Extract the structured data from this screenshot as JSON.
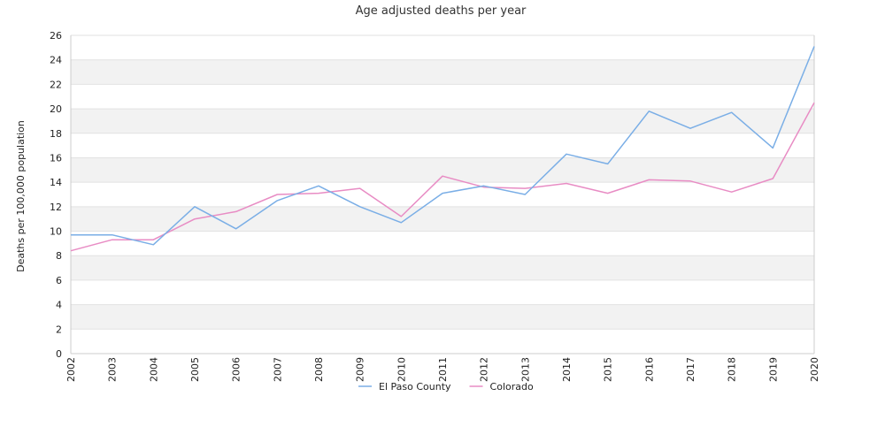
{
  "chart_data": {
    "type": "line",
    "title": "Age adjusted deaths per year",
    "xlabel": "",
    "ylabel": "Deaths per 100,000 population",
    "categories": [
      "2002",
      "2003",
      "2004",
      "2005",
      "2006",
      "2007",
      "2008",
      "2009",
      "2010",
      "2011",
      "2012",
      "2013",
      "2014",
      "2015",
      "2016",
      "2017",
      "2018",
      "2019",
      "2020"
    ],
    "tick_labels": [
      "2002",
      "2003",
      "2004",
      "2005",
      "2006",
      "2007",
      "2008",
      "2009",
      "2010",
      "2011",
      "2012",
      "2013",
      "2014",
      "2015",
      "2016",
      "2017",
      "2018",
      "2019",
      "2020"
    ],
    "ylim": [
      0,
      26
    ],
    "yticks": [
      0,
      2,
      4,
      6,
      8,
      10,
      12,
      14,
      16,
      18,
      20,
      22,
      24,
      26
    ],
    "grid": true,
    "banded_background": true,
    "legend_position": "bottom-center",
    "series": [
      {
        "name": "El Paso County",
        "color": "#7aaee6",
        "values": [
          9.7,
          9.7,
          8.9,
          12.0,
          10.2,
          12.5,
          13.7,
          12.0,
          10.7,
          13.1,
          13.7,
          13.0,
          16.3,
          15.5,
          19.8,
          18.4,
          19.7,
          16.8,
          25.1
        ]
      },
      {
        "name": "Colorado",
        "color": "#e88cc4",
        "values": [
          8.4,
          9.3,
          9.3,
          11.0,
          11.6,
          13.0,
          13.1,
          13.5,
          11.2,
          14.5,
          13.6,
          13.5,
          13.9,
          13.1,
          14.2,
          14.1,
          13.2,
          14.3,
          20.5
        ]
      }
    ]
  }
}
